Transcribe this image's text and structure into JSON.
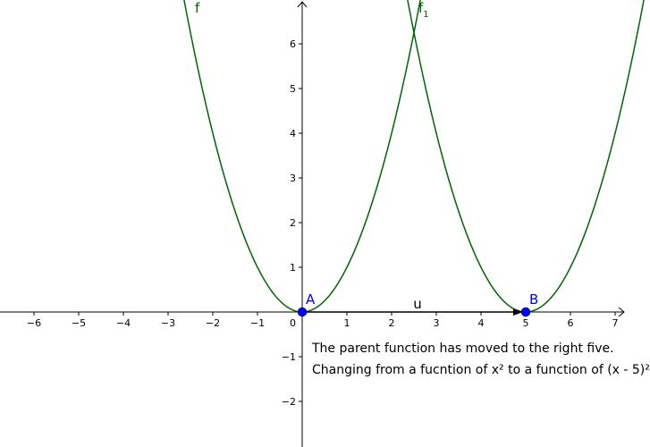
{
  "chart_data": {
    "type": "line",
    "title": "",
    "xlabel": "",
    "ylabel": "",
    "xlim": [
      -6.8,
      7.2
    ],
    "ylim": [
      -3,
      7
    ],
    "x_ticks": [
      -6,
      -5,
      -4,
      -3,
      -2,
      -1,
      1,
      2,
      3,
      4,
      5,
      6,
      7
    ],
    "y_ticks": [
      -2,
      -1,
      1,
      2,
      3,
      4,
      5,
      6
    ],
    "origin_label": "0",
    "grid": false,
    "series": [
      {
        "name": "f",
        "expression": "x^2",
        "vertex": [
          0,
          0
        ],
        "color": "#006400"
      },
      {
        "name": "f",
        "subscript": "1",
        "expression": "(x-5)^2",
        "vertex": [
          5,
          0
        ],
        "color": "#006400"
      }
    ],
    "points": [
      {
        "name": "A",
        "x": 0,
        "y": 0,
        "color": "#0000ff"
      },
      {
        "name": "B",
        "x": 5,
        "y": 0,
        "color": "#0000ff"
      }
    ],
    "vector": {
      "name": "u",
      "from": [
        0,
        0
      ],
      "to": [
        5,
        0
      ],
      "color": "#000000"
    },
    "annotations": [
      "The parent function has moved to the right five.",
      "Changing from a fucntion of x² to a function of (x - 5)²"
    ]
  }
}
